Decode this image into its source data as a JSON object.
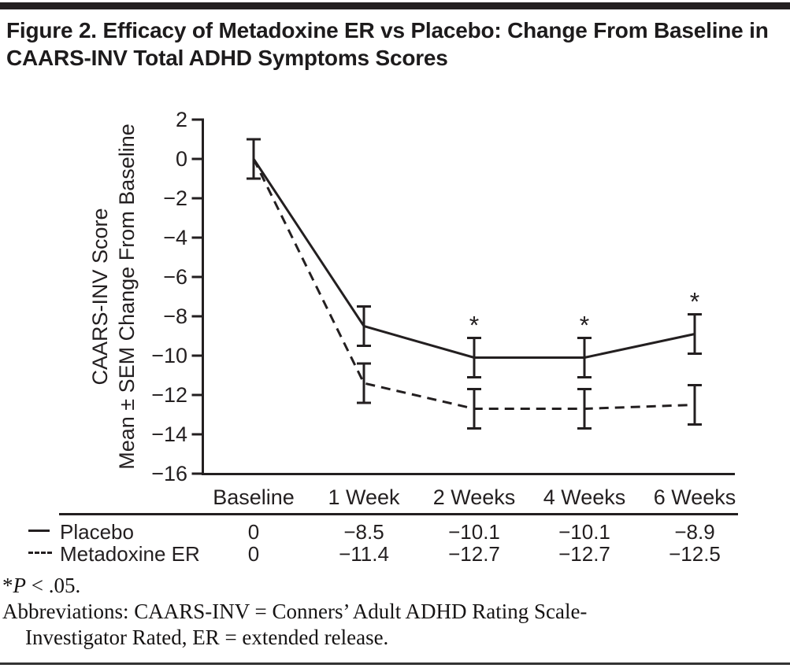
{
  "header": {
    "title": "Figure 2. Efficacy of Metadoxine ER vs Placebo: Change From Baseline in CAARS-INV Total ADHD Symptoms Scores"
  },
  "chart_data": {
    "type": "line",
    "title": "Figure 2. Efficacy of Metadoxine ER vs Placebo: Change From Baseline in CAARS-INV Total ADHD Symptoms Scores",
    "categories": [
      "Baseline",
      "1 Week",
      "2 Weeks",
      "4 Weeks",
      "6 Weeks"
    ],
    "series": [
      {
        "name": "Placebo",
        "line_style": "solid",
        "values": [
          0,
          -8.5,
          -10.1,
          -10.1,
          -8.9
        ],
        "sem": [
          1.0,
          1.0,
          1.0,
          1.0,
          1.0
        ],
        "significant_at": [
          2,
          3,
          4
        ]
      },
      {
        "name": "Metadoxine ER",
        "line_style": "dashed",
        "values": [
          0,
          -11.4,
          -12.7,
          -12.7,
          -12.5
        ],
        "sem": [
          1.0,
          1.0,
          1.0,
          1.0,
          1.0
        ],
        "significant_at": []
      }
    ],
    "xlabel": "",
    "ylabel_lines": [
      "CAARS-INV Score",
      "Mean ± SEM Change From Baseline"
    ],
    "ylim": [
      -16,
      2
    ],
    "ytick_interval": 2,
    "yticks": [
      2,
      0,
      -2,
      -4,
      -6,
      -8,
      -10,
      -12,
      -14,
      -16
    ],
    "error_bar": "SEM",
    "significance_symbol": "*",
    "legend_position": "bottom-table",
    "grid": false
  },
  "footnotes": {
    "significance": {
      "symbol": "*",
      "p_label": "P",
      "condition": " < .05."
    },
    "abbreviations_line1": "Abbreviations: CAARS-INV = Conners’ Adult ADHD Rating Scale-",
    "abbreviations_line2": "Investigator Rated, ER = extended release."
  },
  "colors": {
    "ink": "#231f20",
    "background": "#ffffff"
  }
}
